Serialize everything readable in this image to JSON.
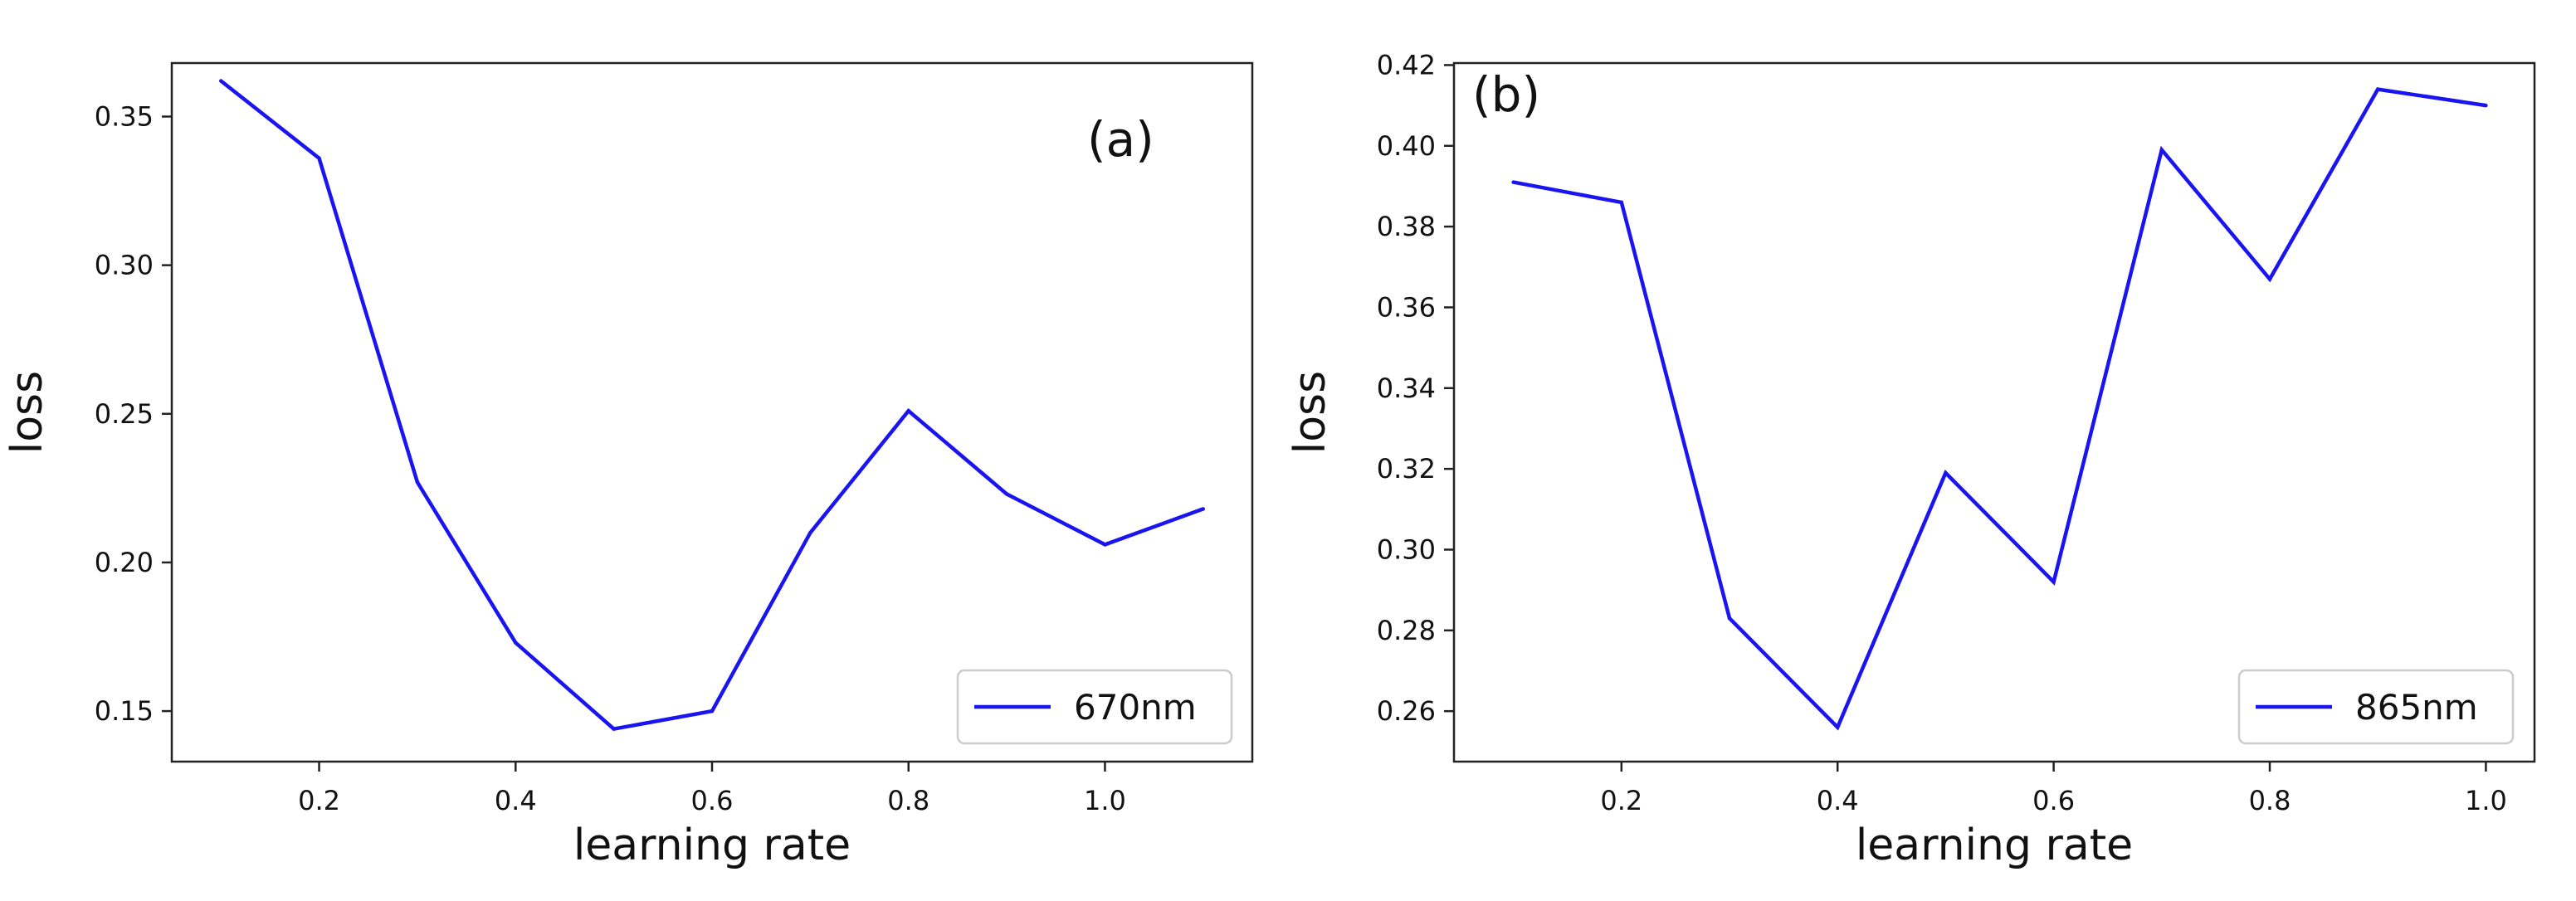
{
  "chart_data": [
    {
      "type": "line",
      "panel_label": "(a)",
      "xlabel": "learning rate",
      "ylabel": "loss",
      "xlim": [
        0.05,
        1.15
      ],
      "ylim": [
        0.133,
        0.368
      ],
      "xticks": [
        0.2,
        0.4,
        0.6,
        0.8,
        1.0
      ],
      "xtick_labels": [
        "0.2",
        "0.4",
        "0.6",
        "0.8",
        "1.0"
      ],
      "yticks": [
        0.15,
        0.2,
        0.25,
        0.3,
        0.35
      ],
      "ytick_labels": [
        "0.15",
        "0.20",
        "0.25",
        "0.30",
        "0.35"
      ],
      "grid": false,
      "legend_position": "lower-right",
      "series": [
        {
          "name": "670nm",
          "color": "#1a14f0",
          "x": [
            0.1,
            0.2,
            0.3,
            0.4,
            0.5,
            0.6,
            0.7,
            0.8,
            0.9,
            1.0,
            1.1
          ],
          "y": [
            0.362,
            0.336,
            0.227,
            0.173,
            0.144,
            0.15,
            0.21,
            0.251,
            0.223,
            0.206,
            0.218
          ]
        }
      ]
    },
    {
      "type": "line",
      "panel_label": "(b)",
      "xlabel": "learning rate",
      "ylabel": "loss",
      "xlim": [
        0.045,
        1.045
      ],
      "ylim": [
        0.2475,
        0.4205
      ],
      "xticks": [
        0.2,
        0.4,
        0.6,
        0.8,
        1.0
      ],
      "xtick_labels": [
        "0.2",
        "0.4",
        "0.6",
        "0.8",
        "1.0"
      ],
      "yticks": [
        0.26,
        0.28,
        0.3,
        0.32,
        0.34,
        0.36,
        0.38,
        0.4,
        0.42
      ],
      "ytick_labels": [
        "0.26",
        "0.28",
        "0.30",
        "0.32",
        "0.34",
        "0.36",
        "0.38",
        "0.40",
        "0.42"
      ],
      "grid": false,
      "legend_position": "lower-right",
      "series": [
        {
          "name": "865nm",
          "color": "#1a14f0",
          "x": [
            0.1,
            0.2,
            0.3,
            0.4,
            0.5,
            0.6,
            0.7,
            0.8,
            0.9,
            1.0
          ],
          "y": [
            0.391,
            0.386,
            0.283,
            0.256,
            0.319,
            0.292,
            0.399,
            0.367,
            0.414,
            0.41
          ]
        }
      ]
    }
  ]
}
